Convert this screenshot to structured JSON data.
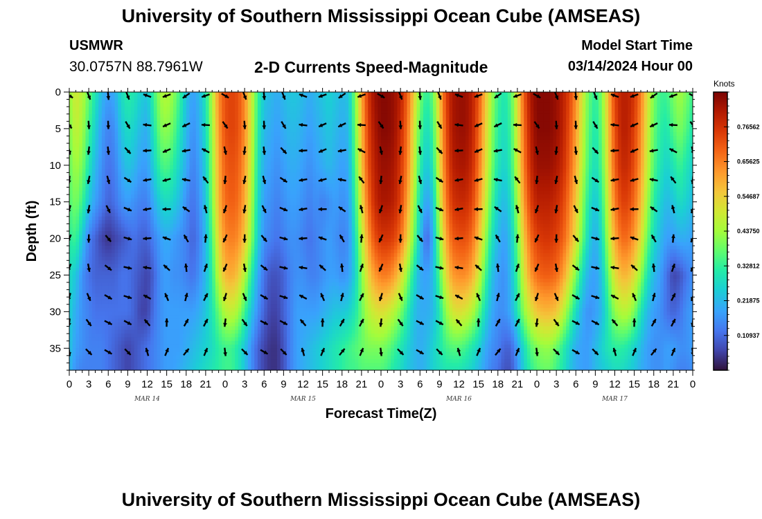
{
  "header": {
    "title": "University of Southern Mississippi Ocean Cube (AMSEAS)",
    "station": "USMWR",
    "coordinates": "30.0757N  88.7961W",
    "subtitle": "2-D Currents Speed-Magnitude",
    "model_start_label": "Model Start Time",
    "model_start_value": "03/14/2024 Hour 00"
  },
  "footer": {
    "title": "University of Southern Mississippi Ocean Cube (AMSEAS)"
  },
  "chart_data": {
    "type": "heatmap",
    "xlabel": "Forecast Time(Z)",
    "ylabel": "Depth (ft)",
    "x_range_hours": [
      0,
      96
    ],
    "y_range_ft": [
      0,
      38
    ],
    "x_tick_labels": [
      "0",
      "3",
      "6",
      "9",
      "12",
      "15",
      "18",
      "21",
      "0",
      "3",
      "6",
      "9",
      "12",
      "15",
      "18",
      "21",
      "0",
      "3",
      "6",
      "9",
      "12",
      "15",
      "18",
      "21",
      "0",
      "3",
      "6",
      "9",
      "12",
      "15",
      "18",
      "21",
      "0"
    ],
    "date_labels": [
      {
        "label": "MAR 14",
        "hour": 12
      },
      {
        "label": "MAR 15",
        "hour": 36
      },
      {
        "label": "MAR 16",
        "hour": 60
      },
      {
        "label": "MAR 17",
        "hour": 84
      }
    ],
    "y_ticks": [
      0,
      5,
      10,
      15,
      20,
      25,
      30,
      35
    ],
    "colorbar": {
      "units": "Knots",
      "min": 0,
      "max": 0.875,
      "ticks": [
        "0.10937",
        "0.21875",
        "0.32812",
        "0.43750",
        "0.54687",
        "0.65625",
        "0.76562"
      ]
    },
    "speed_grid": {
      "hours": [
        0,
        1,
        2,
        3,
        4,
        5,
        6,
        7,
        8,
        9,
        10,
        11,
        12,
        13,
        14,
        15,
        16,
        17,
        18,
        19,
        20,
        21,
        22,
        23,
        24,
        25,
        26,
        27,
        28,
        29,
        30,
        31,
        32,
        33,
        34,
        35,
        36,
        37,
        38,
        39,
        40,
        41,
        42,
        43,
        44,
        45,
        46,
        47,
        48,
        49,
        50,
        51,
        52,
        53,
        54,
        55,
        56,
        57,
        58,
        59,
        60,
        61,
        62,
        63,
        64,
        65,
        66,
        67,
        68,
        69,
        70,
        71,
        72,
        73,
        74,
        75,
        76,
        77,
        78,
        79,
        80,
        81,
        82,
        83,
        84,
        85,
        86,
        87,
        88,
        89,
        90,
        91,
        92,
        93,
        94,
        95,
        96
      ],
      "depths_ft": [
        0,
        5,
        10,
        15,
        20,
        25,
        30,
        35,
        38
      ],
      "rows": [
        [
          0.42,
          0.5,
          0.46,
          0.38,
          0.3,
          0.22,
          0.18,
          0.2,
          0.28,
          0.32,
          0.3,
          0.26,
          0.24,
          0.34,
          0.44,
          0.46,
          0.42,
          0.34,
          0.24,
          0.18,
          0.22,
          0.3,
          0.46,
          0.64,
          0.72,
          0.74,
          0.72,
          0.64,
          0.5,
          0.34,
          0.24,
          0.22,
          0.2,
          0.22,
          0.24,
          0.24,
          0.22,
          0.2,
          0.22,
          0.24,
          0.26,
          0.24,
          0.22,
          0.24,
          0.4,
          0.6,
          0.76,
          0.84,
          0.86,
          0.86,
          0.84,
          0.8,
          0.7,
          0.56,
          0.4,
          0.32,
          0.38,
          0.56,
          0.74,
          0.82,
          0.84,
          0.84,
          0.8,
          0.72,
          0.58,
          0.44,
          0.34,
          0.3,
          0.36,
          0.52,
          0.7,
          0.82,
          0.86,
          0.86,
          0.86,
          0.84,
          0.8,
          0.74,
          0.64,
          0.5,
          0.38,
          0.32,
          0.4,
          0.58,
          0.74,
          0.8,
          0.8,
          0.76,
          0.66,
          0.52,
          0.4,
          0.34,
          0.34,
          0.4,
          0.44,
          0.4,
          0.34
        ],
        [
          0.4,
          0.48,
          0.44,
          0.34,
          0.26,
          0.18,
          0.14,
          0.16,
          0.24,
          0.28,
          0.26,
          0.22,
          0.2,
          0.3,
          0.4,
          0.42,
          0.38,
          0.3,
          0.22,
          0.16,
          0.2,
          0.28,
          0.44,
          0.62,
          0.72,
          0.74,
          0.72,
          0.64,
          0.5,
          0.32,
          0.22,
          0.2,
          0.18,
          0.2,
          0.22,
          0.22,
          0.2,
          0.18,
          0.2,
          0.22,
          0.24,
          0.22,
          0.2,
          0.22,
          0.38,
          0.58,
          0.74,
          0.82,
          0.86,
          0.86,
          0.84,
          0.78,
          0.68,
          0.52,
          0.36,
          0.28,
          0.34,
          0.54,
          0.72,
          0.82,
          0.84,
          0.84,
          0.8,
          0.7,
          0.56,
          0.42,
          0.32,
          0.28,
          0.34,
          0.5,
          0.68,
          0.8,
          0.86,
          0.86,
          0.86,
          0.84,
          0.8,
          0.72,
          0.62,
          0.48,
          0.36,
          0.3,
          0.38,
          0.56,
          0.72,
          0.8,
          0.8,
          0.74,
          0.64,
          0.5,
          0.38,
          0.32,
          0.3,
          0.36,
          0.4,
          0.36,
          0.3
        ],
        [
          0.38,
          0.44,
          0.4,
          0.3,
          0.22,
          0.16,
          0.12,
          0.14,
          0.2,
          0.24,
          0.22,
          0.18,
          0.18,
          0.26,
          0.34,
          0.36,
          0.32,
          0.26,
          0.2,
          0.14,
          0.18,
          0.26,
          0.42,
          0.6,
          0.7,
          0.72,
          0.7,
          0.62,
          0.48,
          0.3,
          0.2,
          0.18,
          0.16,
          0.18,
          0.2,
          0.2,
          0.18,
          0.16,
          0.18,
          0.2,
          0.22,
          0.2,
          0.18,
          0.2,
          0.36,
          0.56,
          0.72,
          0.8,
          0.84,
          0.84,
          0.82,
          0.76,
          0.66,
          0.5,
          0.32,
          0.24,
          0.3,
          0.52,
          0.7,
          0.8,
          0.82,
          0.82,
          0.78,
          0.68,
          0.54,
          0.4,
          0.3,
          0.26,
          0.32,
          0.48,
          0.66,
          0.78,
          0.84,
          0.84,
          0.84,
          0.82,
          0.78,
          0.7,
          0.6,
          0.46,
          0.34,
          0.28,
          0.36,
          0.54,
          0.7,
          0.78,
          0.78,
          0.72,
          0.62,
          0.48,
          0.36,
          0.3,
          0.26,
          0.3,
          0.34,
          0.3,
          0.26
        ],
        [
          0.36,
          0.4,
          0.34,
          0.24,
          0.18,
          0.14,
          0.1,
          0.12,
          0.16,
          0.18,
          0.16,
          0.14,
          0.14,
          0.2,
          0.26,
          0.28,
          0.26,
          0.22,
          0.16,
          0.12,
          0.16,
          0.24,
          0.4,
          0.58,
          0.68,
          0.7,
          0.68,
          0.6,
          0.46,
          0.28,
          0.18,
          0.16,
          0.14,
          0.16,
          0.18,
          0.18,
          0.16,
          0.14,
          0.16,
          0.14,
          0.16,
          0.18,
          0.16,
          0.18,
          0.32,
          0.52,
          0.68,
          0.78,
          0.82,
          0.82,
          0.8,
          0.74,
          0.62,
          0.46,
          0.28,
          0.18,
          0.24,
          0.48,
          0.66,
          0.76,
          0.78,
          0.78,
          0.74,
          0.64,
          0.5,
          0.36,
          0.26,
          0.22,
          0.28,
          0.44,
          0.62,
          0.74,
          0.8,
          0.8,
          0.8,
          0.78,
          0.74,
          0.66,
          0.56,
          0.42,
          0.3,
          0.24,
          0.32,
          0.5,
          0.66,
          0.74,
          0.74,
          0.68,
          0.58,
          0.44,
          0.32,
          0.26,
          0.22,
          0.24,
          0.28,
          0.26,
          0.22
        ],
        [
          0.32,
          0.34,
          0.24,
          0.14,
          0.1,
          0.06,
          0.04,
          0.06,
          0.08,
          0.1,
          0.12,
          0.1,
          0.1,
          0.14,
          0.18,
          0.2,
          0.18,
          0.16,
          0.14,
          0.1,
          0.14,
          0.22,
          0.36,
          0.54,
          0.64,
          0.66,
          0.64,
          0.56,
          0.42,
          0.26,
          0.16,
          0.14,
          0.12,
          0.14,
          0.16,
          0.16,
          0.14,
          0.12,
          0.14,
          0.16,
          0.18,
          0.16,
          0.14,
          0.16,
          0.28,
          0.46,
          0.62,
          0.72,
          0.76,
          0.76,
          0.74,
          0.68,
          0.56,
          0.4,
          0.24,
          0.1,
          0.2,
          0.42,
          0.6,
          0.7,
          0.72,
          0.72,
          0.68,
          0.58,
          0.44,
          0.3,
          0.22,
          0.18,
          0.24,
          0.38,
          0.56,
          0.68,
          0.74,
          0.76,
          0.76,
          0.74,
          0.7,
          0.62,
          0.52,
          0.38,
          0.26,
          0.2,
          0.28,
          0.46,
          0.6,
          0.68,
          0.68,
          0.62,
          0.52,
          0.38,
          0.28,
          0.22,
          0.18,
          0.18,
          0.2,
          0.2,
          0.18
        ],
        [
          0.28,
          0.24,
          0.16,
          0.12,
          0.1,
          0.1,
          0.1,
          0.1,
          0.12,
          0.12,
          0.1,
          0.08,
          0.06,
          0.1,
          0.16,
          0.18,
          0.16,
          0.16,
          0.14,
          0.12,
          0.16,
          0.22,
          0.32,
          0.48,
          0.58,
          0.6,
          0.56,
          0.46,
          0.32,
          0.2,
          0.12,
          0.08,
          0.08,
          0.1,
          0.14,
          0.16,
          0.16,
          0.14,
          0.14,
          0.16,
          0.18,
          0.18,
          0.16,
          0.18,
          0.26,
          0.4,
          0.54,
          0.62,
          0.66,
          0.66,
          0.62,
          0.54,
          0.42,
          0.3,
          0.2,
          0.18,
          0.22,
          0.36,
          0.52,
          0.62,
          0.64,
          0.64,
          0.6,
          0.5,
          0.36,
          0.24,
          0.18,
          0.16,
          0.22,
          0.34,
          0.5,
          0.62,
          0.68,
          0.7,
          0.7,
          0.68,
          0.62,
          0.52,
          0.4,
          0.28,
          0.2,
          0.18,
          0.24,
          0.38,
          0.52,
          0.58,
          0.58,
          0.52,
          0.42,
          0.3,
          0.22,
          0.18,
          0.12,
          0.06,
          0.08,
          0.12,
          0.16
        ],
        [
          0.26,
          0.2,
          0.16,
          0.14,
          0.12,
          0.12,
          0.12,
          0.12,
          0.12,
          0.12,
          0.1,
          0.06,
          0.06,
          0.12,
          0.16,
          0.18,
          0.18,
          0.18,
          0.18,
          0.18,
          0.2,
          0.24,
          0.3,
          0.38,
          0.46,
          0.48,
          0.44,
          0.34,
          0.24,
          0.16,
          0.1,
          0.06,
          0.06,
          0.1,
          0.14,
          0.18,
          0.18,
          0.18,
          0.18,
          0.2,
          0.22,
          0.24,
          0.24,
          0.26,
          0.3,
          0.38,
          0.46,
          0.5,
          0.52,
          0.5,
          0.46,
          0.4,
          0.32,
          0.24,
          0.2,
          0.2,
          0.22,
          0.3,
          0.42,
          0.5,
          0.52,
          0.5,
          0.46,
          0.38,
          0.28,
          0.2,
          0.16,
          0.16,
          0.2,
          0.3,
          0.42,
          0.5,
          0.56,
          0.58,
          0.58,
          0.56,
          0.48,
          0.38,
          0.28,
          0.2,
          0.16,
          0.18,
          0.22,
          0.32,
          0.42,
          0.46,
          0.46,
          0.4,
          0.3,
          0.22,
          0.18,
          0.16,
          0.12,
          0.1,
          0.12,
          0.16,
          0.18
        ],
        [
          0.24,
          0.18,
          0.16,
          0.14,
          0.14,
          0.14,
          0.12,
          0.1,
          0.08,
          0.06,
          0.08,
          0.1,
          0.12,
          0.14,
          0.16,
          0.18,
          0.18,
          0.18,
          0.2,
          0.22,
          0.24,
          0.26,
          0.28,
          0.32,
          0.34,
          0.34,
          0.3,
          0.24,
          0.16,
          0.1,
          0.06,
          0.04,
          0.04,
          0.08,
          0.14,
          0.18,
          0.2,
          0.22,
          0.24,
          0.26,
          0.28,
          0.3,
          0.32,
          0.34,
          0.36,
          0.38,
          0.4,
          0.4,
          0.4,
          0.38,
          0.34,
          0.3,
          0.26,
          0.22,
          0.2,
          0.22,
          0.26,
          0.3,
          0.34,
          0.36,
          0.36,
          0.34,
          0.3,
          0.26,
          0.2,
          0.16,
          0.14,
          0.1,
          0.1,
          0.18,
          0.28,
          0.36,
          0.4,
          0.42,
          0.42,
          0.38,
          0.32,
          0.26,
          0.2,
          0.18,
          0.18,
          0.22,
          0.26,
          0.3,
          0.32,
          0.32,
          0.3,
          0.26,
          0.22,
          0.18,
          0.16,
          0.16,
          0.18,
          0.18,
          0.16,
          0.16,
          0.18
        ],
        [
          0.22,
          0.16,
          0.14,
          0.14,
          0.14,
          0.14,
          0.12,
          0.1,
          0.08,
          0.06,
          0.08,
          0.1,
          0.12,
          0.14,
          0.16,
          0.18,
          0.18,
          0.2,
          0.22,
          0.24,
          0.26,
          0.28,
          0.3,
          0.32,
          0.34,
          0.34,
          0.3,
          0.24,
          0.16,
          0.1,
          0.06,
          0.04,
          0.04,
          0.08,
          0.14,
          0.18,
          0.2,
          0.22,
          0.24,
          0.26,
          0.28,
          0.3,
          0.32,
          0.34,
          0.34,
          0.36,
          0.36,
          0.36,
          0.36,
          0.34,
          0.3,
          0.28,
          0.24,
          0.22,
          0.2,
          0.22,
          0.26,
          0.28,
          0.3,
          0.3,
          0.3,
          0.28,
          0.26,
          0.22,
          0.18,
          0.14,
          0.12,
          0.08,
          0.08,
          0.16,
          0.26,
          0.32,
          0.36,
          0.38,
          0.38,
          0.34,
          0.3,
          0.24,
          0.2,
          0.18,
          0.18,
          0.22,
          0.24,
          0.26,
          0.28,
          0.28,
          0.26,
          0.24,
          0.2,
          0.18,
          0.16,
          0.16,
          0.18,
          0.16,
          0.14,
          0.14,
          0.16
        ]
      ]
    }
  }
}
